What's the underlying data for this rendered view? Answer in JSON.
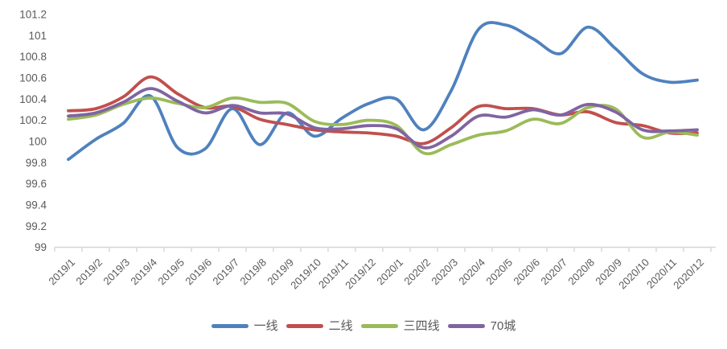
{
  "chart_data": {
    "type": "line",
    "title": "",
    "categories": [
      "2019/1",
      "2019/2",
      "2019/3",
      "2019/4",
      "2019/5",
      "2019/6",
      "2019/7",
      "2019/8",
      "2019/9",
      "2019/10",
      "2019/11",
      "2019/12",
      "2020/1",
      "2020/2",
      "2020/3",
      "2020/4",
      "2020/5",
      "2020/6",
      "2020/7",
      "2020/8",
      "2020/9",
      "2020/10",
      "2020/11",
      "2020/12"
    ],
    "series": [
      {
        "name": "一线",
        "color": "#4F81BD",
        "values": [
          99.83,
          100.02,
          100.17,
          100.43,
          99.94,
          99.93,
          100.31,
          99.97,
          100.27,
          100.05,
          100.22,
          100.36,
          100.4,
          100.11,
          100.48,
          101.06,
          101.1,
          100.97,
          100.83,
          101.08,
          100.88,
          100.64,
          100.56,
          100.58
        ]
      },
      {
        "name": "二线",
        "color": "#C0504D",
        "values": [
          100.29,
          100.31,
          100.42,
          100.61,
          100.45,
          100.32,
          100.33,
          100.21,
          100.16,
          100.11,
          100.09,
          100.08,
          100.05,
          99.98,
          100.13,
          100.33,
          100.31,
          100.31,
          100.25,
          100.28,
          100.18,
          100.15,
          100.08,
          100.08
        ]
      },
      {
        "name": "三四线",
        "color": "#9BBB59",
        "values": [
          100.21,
          100.25,
          100.35,
          100.41,
          100.36,
          100.32,
          100.41,
          100.37,
          100.36,
          100.19,
          100.16,
          100.2,
          100.15,
          99.89,
          99.97,
          100.06,
          100.1,
          100.21,
          100.17,
          100.32,
          100.31,
          100.04,
          100.09,
          100.06
        ]
      },
      {
        "name": "70城",
        "color": "#8064A2",
        "values": [
          100.24,
          100.27,
          100.37,
          100.5,
          100.38,
          100.27,
          100.34,
          100.27,
          100.26,
          100.13,
          100.12,
          100.15,
          100.12,
          99.94,
          100.05,
          100.24,
          100.23,
          100.3,
          100.25,
          100.35,
          100.28,
          100.11,
          100.1,
          100.11
        ]
      }
    ],
    "y_axis": {
      "min": 99,
      "max": 101.2,
      "step": 0.2,
      "tick_labels": [
        "99",
        "99.2",
        "99.4",
        "99.6",
        "99.8",
        "100",
        "100.2",
        "100.4",
        "100.6",
        "100.8",
        "101",
        "101.2"
      ]
    },
    "x_axis": {
      "label_rotation_deg": 45
    },
    "legend": {
      "position": "bottom",
      "entries": [
        "一线",
        "二线",
        "三四线",
        "70城"
      ]
    },
    "grid": "off",
    "style": {
      "axis_color": "#D6D6D6",
      "label_color": "#595959",
      "background": "#FFFFFF",
      "line_width": 3.8
    }
  }
}
